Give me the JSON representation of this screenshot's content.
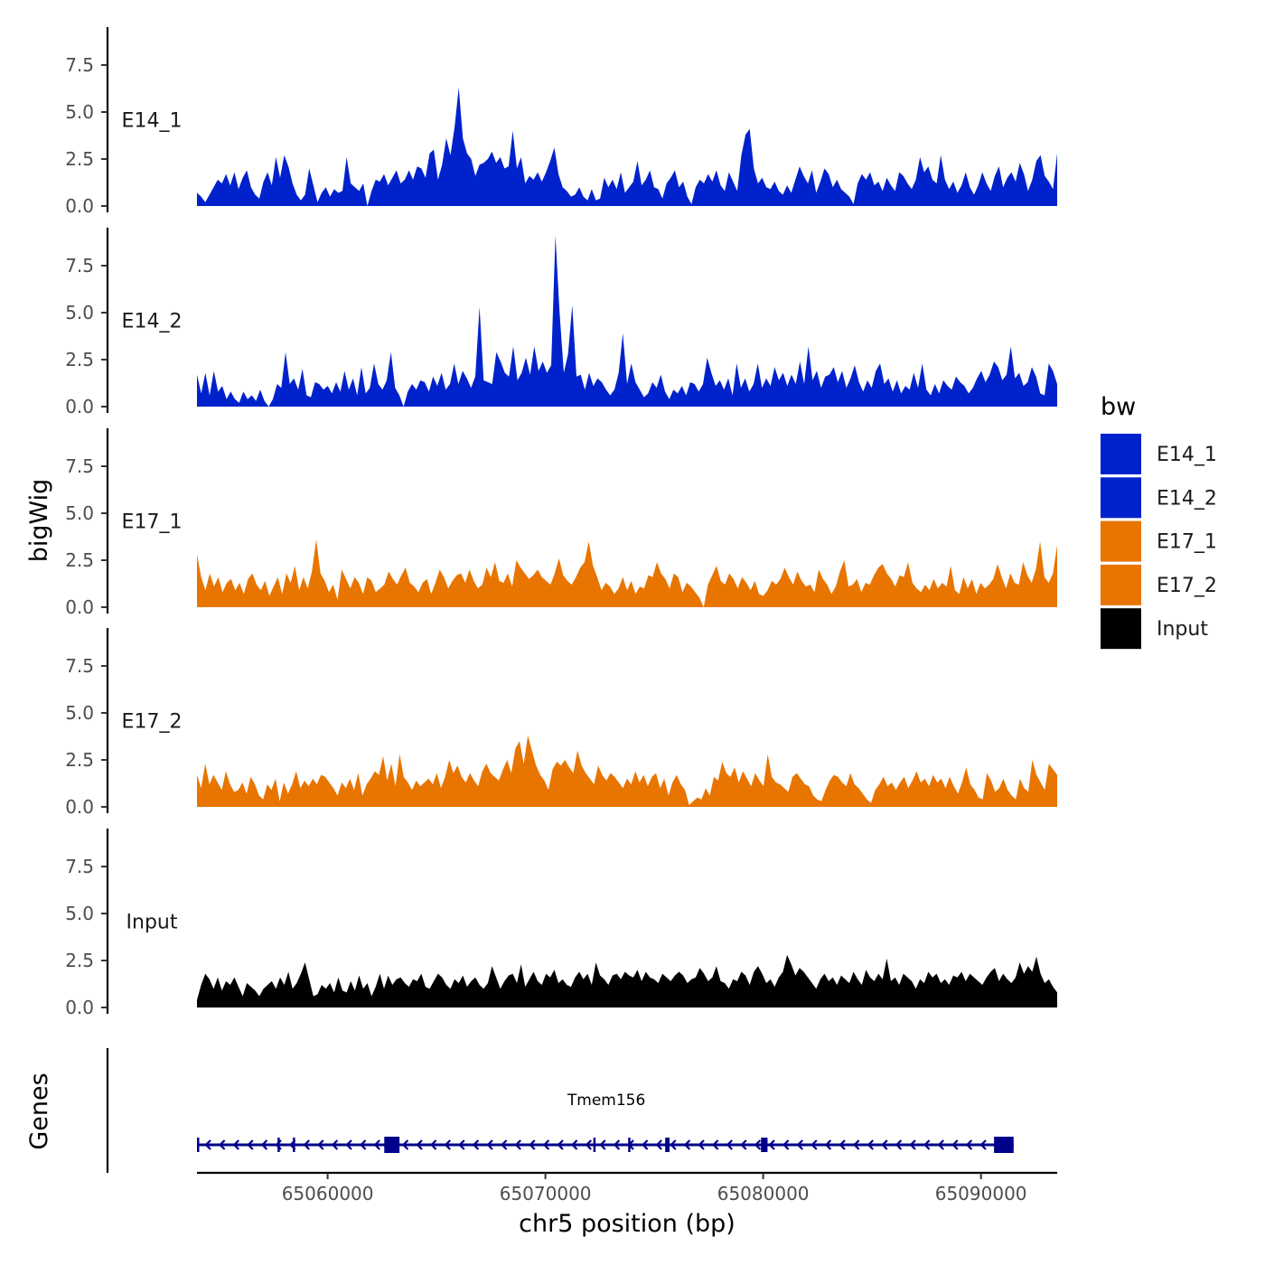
{
  "chart_data": {
    "type": "area",
    "title": "",
    "ylabel": "bigWig",
    "xlabel": "chr5 position (bp)",
    "ylim": [
      0,
      9.6
    ],
    "yticks": [
      0.0,
      2.5,
      5.0,
      7.5
    ],
    "ytick_labels": [
      "0.0",
      "2.5",
      "5.0",
      "7.5"
    ],
    "xlim": [
      65054000,
      65093500
    ],
    "xticks": [
      65060000,
      65070000,
      65080000,
      65090000
    ],
    "xtick_labels": [
      "65060000",
      "65070000",
      "65080000",
      "65090000"
    ],
    "series_start": 65054000,
    "series_end": 65093500,
    "legend": {
      "title": "bw",
      "placement": "right",
      "entries": [
        {
          "label": "E14_1",
          "color": "#0022CC"
        },
        {
          "label": "E14_2",
          "color": "#0022CC"
        },
        {
          "label": "E17_1",
          "color": "#E87500"
        },
        {
          "label": "E17_2",
          "color": "#E87500"
        },
        {
          "label": "Input",
          "color": "#000000"
        }
      ]
    },
    "series": [
      {
        "name": "E14_1",
        "color": "#0022CC",
        "values": [
          0.7,
          0.5,
          0.2,
          0.6,
          1.0,
          1.4,
          1.2,
          1.7,
          1.1,
          1.8,
          0.9,
          1.5,
          1.9,
          1.0,
          0.6,
          0.4,
          1.3,
          1.8,
          1.1,
          2.6,
          1.5,
          2.7,
          2.1,
          1.2,
          0.6,
          0.3,
          0.6,
          2.0,
          1.1,
          0.2,
          0.7,
          1.0,
          0.5,
          0.9,
          0.7,
          0.8,
          2.6,
          1.2,
          1.0,
          0.8,
          1.2,
          0.0,
          0.8,
          1.4,
          1.3,
          1.7,
          1.1,
          1.5,
          1.9,
          1.2,
          1.4,
          1.9,
          1.4,
          2.1,
          2.0,
          1.5,
          2.8,
          3.0,
          1.4,
          2.2,
          3.6,
          2.7,
          4.2,
          6.3,
          3.6,
          2.8,
          2.5,
          1.6,
          2.2,
          2.3,
          2.5,
          2.9,
          2.3,
          2.6,
          2.0,
          2.1,
          4.0,
          2.0,
          2.6,
          1.2,
          1.6,
          1.4,
          1.8,
          1.3,
          1.8,
          2.4,
          3.1,
          1.7,
          1.0,
          0.8,
          0.5,
          0.6,
          1.0,
          0.5,
          0.3,
          0.9,
          0.3,
          0.4,
          1.5,
          1.0,
          1.4,
          0.9,
          1.8,
          0.7,
          1.0,
          1.3,
          2.4,
          1.1,
          1.4,
          1.9,
          1.0,
          0.9,
          0.4,
          1.2,
          1.5,
          1.9,
          1.0,
          1.3,
          0.5,
          0.1,
          1.0,
          1.4,
          1.2,
          1.7,
          1.3,
          1.9,
          1.1,
          0.8,
          1.8,
          1.3,
          0.8,
          2.7,
          3.8,
          4.1,
          2.0,
          1.2,
          1.5,
          1.0,
          0.9,
          1.3,
          0.8,
          0.6,
          1.1,
          0.7,
          1.4,
          2.1,
          1.6,
          1.2,
          1.9,
          0.7,
          1.3,
          2.0,
          1.7,
          1.0,
          1.4,
          0.9,
          0.7,
          0.5,
          0.1,
          1.2,
          1.7,
          1.4,
          1.8,
          1.1,
          1.3,
          0.8,
          1.5,
          1.1,
          0.8,
          1.8,
          1.6,
          1.2,
          0.9,
          1.4,
          2.6,
          1.8,
          2.1,
          1.4,
          1.2,
          2.7,
          1.4,
          0.9,
          1.3,
          0.7,
          1.1,
          1.8,
          1.0,
          0.6,
          1.1,
          1.8,
          1.2,
          0.8,
          1.6,
          2.1,
          1.0,
          1.5,
          1.8,
          1.3,
          2.3,
          1.7,
          0.8,
          1.4,
          2.4,
          2.7,
          1.6,
          1.3,
          0.9,
          2.8
        ]
      },
      {
        "name": "E14_2",
        "color": "#0022CC",
        "values": [
          1.7,
          0.7,
          1.8,
          0.6,
          1.9,
          0.8,
          1.1,
          0.4,
          0.8,
          0.4,
          0.2,
          0.8,
          0.4,
          0.6,
          0.3,
          0.9,
          0.3,
          0.0,
          0.4,
          1.2,
          1.0,
          2.9,
          1.2,
          1.5,
          0.9,
          2.0,
          0.6,
          0.5,
          1.3,
          1.2,
          0.9,
          1.1,
          0.7,
          1.3,
          0.8,
          1.9,
          0.9,
          1.5,
          0.6,
          2.1,
          0.7,
          1.0,
          2.3,
          1.2,
          0.9,
          1.4,
          2.9,
          1.0,
          0.6,
          0.0,
          0.8,
          1.2,
          0.9,
          1.4,
          1.3,
          0.8,
          1.6,
          1.1,
          1.8,
          0.9,
          1.2,
          2.3,
          1.2,
          1.9,
          1.5,
          1.0,
          1.6,
          5.3,
          1.4,
          1.3,
          1.2,
          2.9,
          2.4,
          1.8,
          1.6,
          3.2,
          1.4,
          1.8,
          2.6,
          1.7,
          3.2,
          1.9,
          2.4,
          1.8,
          2.2,
          9.1,
          5.0,
          1.8,
          2.8,
          5.4,
          1.6,
          1.7,
          0.9,
          1.8,
          1.1,
          1.5,
          1.3,
          0.9,
          0.6,
          0.9,
          1.8,
          3.9,
          1.2,
          2.3,
          1.3,
          0.9,
          0.5,
          0.7,
          1.3,
          1.0,
          1.7,
          0.8,
          0.4,
          0.9,
          0.7,
          1.1,
          0.6,
          1.3,
          1.2,
          0.8,
          1.2,
          2.6,
          1.8,
          1.1,
          1.4,
          0.9,
          1.5,
          0.6,
          2.3,
          1.0,
          1.5,
          0.8,
          1.2,
          2.3,
          1.0,
          1.5,
          1.1,
          2.1,
          1.4,
          1.8,
          1.1,
          1.7,
          1.2,
          2.4,
          1.2,
          3.2,
          1.4,
          1.9,
          1.0,
          1.6,
          1.7,
          2.1,
          1.3,
          1.9,
          1.0,
          1.5,
          2.2,
          1.3,
          0.8,
          1.4,
          1.0,
          1.9,
          2.3,
          1.2,
          1.5,
          0.8,
          1.4,
          0.7,
          1.1,
          0.9,
          1.8,
          1.0,
          2.3,
          0.9,
          0.6,
          1.2,
          0.7,
          1.4,
          1.1,
          0.9,
          1.6,
          1.3,
          1.1,
          0.7,
          1.0,
          1.5,
          1.9,
          1.3,
          1.7,
          2.4,
          2.1,
          1.4,
          1.7,
          3.2,
          1.5,
          1.8,
          1.1,
          1.3,
          2.1,
          1.6,
          0.7,
          0.6,
          2.3,
          1.9,
          1.2
        ]
      },
      {
        "name": "E17_1",
        "color": "#E87500",
        "values": [
          2.8,
          1.6,
          0.9,
          1.8,
          1.1,
          1.6,
          0.8,
          1.3,
          1.5,
          0.9,
          1.3,
          0.7,
          1.5,
          1.8,
          1.2,
          0.9,
          1.4,
          0.6,
          1.1,
          1.6,
          0.7,
          1.8,
          1.3,
          2.2,
          0.9,
          1.6,
          1.0,
          1.9,
          3.6,
          1.8,
          1.4,
          0.8,
          1.2,
          0.4,
          2.0,
          1.5,
          1.0,
          1.6,
          1.3,
          0.7,
          1.6,
          1.4,
          0.8,
          1.0,
          1.2,
          1.9,
          1.5,
          1.2,
          1.7,
          2.1,
          1.3,
          1.1,
          0.8,
          1.3,
          1.5,
          0.7,
          1.3,
          2.0,
          1.6,
          1.0,
          1.4,
          1.7,
          1.8,
          1.3,
          2.0,
          1.4,
          1.0,
          1.2,
          2.1,
          1.6,
          2.4,
          1.4,
          1.3,
          1.8,
          1.1,
          2.5,
          2.1,
          1.8,
          1.5,
          1.7,
          2.0,
          1.6,
          1.4,
          1.2,
          1.8,
          2.6,
          1.7,
          1.4,
          1.2,
          1.6,
          2.1,
          2.4,
          3.5,
          2.2,
          1.6,
          0.9,
          1.3,
          1.1,
          0.7,
          1.0,
          1.6,
          0.9,
          1.4,
          0.7,
          1.1,
          1.0,
          1.7,
          1.6,
          2.4,
          1.8,
          1.5,
          1.0,
          1.8,
          1.6,
          0.8,
          1.3,
          1.1,
          0.8,
          0.5,
          0.0,
          1.2,
          1.7,
          2.2,
          1.4,
          1.2,
          1.8,
          1.5,
          1.0,
          1.6,
          1.3,
          0.9,
          1.4,
          0.7,
          0.6,
          0.9,
          1.4,
          1.2,
          1.5,
          2.1,
          1.6,
          1.2,
          1.9,
          1.4,
          1.1,
          1.2,
          0.8,
          2.0,
          1.5,
          1.2,
          0.7,
          1.1,
          1.9,
          2.5,
          1.1,
          1.2,
          1.5,
          0.8,
          1.3,
          1.2,
          1.7,
          2.1,
          2.3,
          1.8,
          1.5,
          1.1,
          1.7,
          1.6,
          2.4,
          1.3,
          1.0,
          0.8,
          1.2,
          0.9,
          1.5,
          1.0,
          1.3,
          1.1,
          2.2,
          0.9,
          0.7,
          1.6,
          1.0,
          1.5,
          0.7,
          1.3,
          1.0,
          1.2,
          1.5,
          2.3,
          1.6,
          1.0,
          1.8,
          1.3,
          1.2,
          2.4,
          1.7,
          1.3,
          2.0,
          3.5,
          1.6,
          1.3,
          1.8,
          3.3
        ]
      },
      {
        "name": "E17_2",
        "color": "#E87500",
        "values": [
          1.7,
          1.0,
          2.3,
          1.2,
          1.7,
          1.3,
          0.9,
          1.9,
          1.2,
          0.8,
          0.9,
          1.3,
          0.7,
          1.6,
          1.2,
          0.6,
          0.4,
          1.2,
          0.9,
          1.5,
          0.3,
          1.3,
          0.7,
          1.2,
          1.9,
          1.0,
          1.4,
          1.1,
          1.5,
          1.2,
          1.7,
          1.6,
          1.3,
          1.0,
          0.6,
          1.3,
          1.0,
          1.5,
          0.9,
          1.8,
          0.6,
          1.2,
          1.5,
          1.9,
          1.7,
          2.7,
          1.4,
          2.3,
          1.1,
          2.8,
          1.6,
          1.3,
          0.9,
          1.4,
          1.1,
          1.3,
          1.5,
          1.2,
          1.8,
          1.0,
          1.6,
          2.5,
          1.8,
          2.2,
          1.6,
          1.3,
          1.8,
          1.4,
          1.1,
          1.9,
          2.3,
          1.8,
          1.6,
          1.4,
          2.0,
          2.5,
          1.8,
          3.1,
          3.5,
          2.3,
          3.8,
          3.0,
          2.2,
          1.7,
          1.4,
          0.9,
          2.0,
          2.4,
          2.2,
          2.5,
          2.1,
          1.8,
          3.0,
          2.2,
          1.8,
          1.5,
          1.2,
          2.2,
          1.7,
          1.4,
          1.8,
          1.6,
          1.3,
          1.0,
          1.5,
          1.2,
          1.9,
          1.3,
          1.7,
          1.1,
          1.6,
          1.8,
          1.0,
          1.5,
          0.6,
          1.3,
          1.7,
          1.2,
          0.9,
          0.1,
          0.3,
          0.5,
          0.4,
          1.0,
          0.6,
          1.6,
          1.4,
          2.4,
          1.8,
          1.6,
          2.1,
          1.3,
          1.9,
          1.5,
          1.1,
          1.8,
          1.4,
          1.1,
          2.8,
          1.6,
          1.3,
          1.2,
          1.0,
          0.8,
          1.6,
          1.8,
          1.5,
          1.2,
          1.1,
          0.6,
          0.4,
          0.3,
          0.9,
          1.4,
          1.7,
          1.6,
          1.3,
          1.1,
          1.8,
          1.2,
          1.0,
          0.7,
          0.4,
          0.2,
          0.9,
          1.2,
          1.6,
          1.1,
          1.3,
          0.9,
          1.3,
          1.6,
          1.0,
          1.4,
          1.9,
          1.3,
          1.5,
          1.1,
          1.7,
          1.3,
          1.5,
          1.0,
          1.6,
          1.1,
          0.7,
          1.3,
          2.1,
          1.2,
          0.9,
          0.5,
          0.4,
          1.8,
          1.4,
          0.8,
          1.0,
          1.5,
          0.9,
          0.6,
          0.4,
          1.5,
          1.0,
          0.8,
          2.5,
          1.7,
          1.3,
          0.9,
          2.3,
          2.0,
          1.7
        ]
      },
      {
        "name": "Input",
        "color": "#000000",
        "values": [
          0.4,
          1.2,
          1.8,
          1.5,
          1.0,
          1.6,
          0.9,
          1.4,
          1.2,
          1.6,
          1.1,
          0.6,
          1.3,
          1.1,
          0.9,
          0.6,
          1.0,
          1.2,
          1.4,
          1.0,
          1.6,
          1.2,
          1.9,
          1.0,
          1.3,
          1.8,
          2.4,
          1.5,
          0.6,
          0.7,
          1.2,
          1.0,
          1.3,
          0.8,
          1.6,
          0.9,
          0.8,
          1.4,
          0.9,
          1.7,
          1.0,
          1.3,
          0.6,
          1.1,
          1.8,
          1.0,
          1.7,
          1.2,
          1.5,
          1.6,
          1.3,
          1.1,
          1.5,
          1.4,
          1.8,
          1.1,
          1.0,
          1.4,
          1.8,
          1.6,
          1.2,
          1.0,
          1.5,
          1.3,
          1.7,
          1.1,
          1.4,
          1.6,
          1.2,
          1.0,
          1.3,
          2.2,
          1.6,
          1.0,
          1.4,
          1.7,
          1.8,
          1.3,
          2.3,
          1.1,
          1.5,
          1.9,
          1.4,
          1.2,
          1.8,
          1.6,
          2.0,
          1.3,
          1.5,
          1.2,
          1.1,
          1.6,
          1.9,
          1.5,
          1.8,
          1.2,
          2.4,
          1.7,
          1.5,
          1.2,
          1.7,
          1.8,
          1.5,
          1.9,
          1.7,
          1.6,
          2.0,
          1.4,
          1.9,
          1.6,
          1.5,
          1.3,
          1.8,
          1.6,
          1.4,
          1.7,
          1.9,
          1.7,
          1.3,
          1.5,
          1.6,
          2.1,
          1.8,
          1.4,
          1.6,
          2.2,
          1.4,
          1.3,
          1.0,
          1.5,
          1.4,
          1.9,
          1.7,
          1.2,
          1.9,
          2.2,
          1.8,
          1.3,
          1.5,
          1.1,
          1.6,
          1.9,
          2.8,
          2.3,
          1.7,
          2.1,
          1.9,
          1.6,
          1.3,
          1.0,
          1.5,
          1.8,
          1.4,
          1.6,
          1.2,
          1.7,
          1.5,
          1.3,
          1.9,
          1.5,
          1.2,
          2.0,
          1.6,
          1.4,
          1.8,
          1.5,
          2.6,
          1.4,
          1.6,
          1.2,
          1.8,
          1.6,
          1.4,
          1.0,
          1.5,
          1.3,
          1.9,
          1.6,
          1.8,
          1.3,
          1.5,
          1.2,
          1.7,
          1.6,
          1.9,
          1.4,
          1.8,
          1.6,
          1.4,
          1.2,
          1.6,
          1.9,
          2.1,
          1.4,
          1.8,
          1.5,
          1.3,
          1.6,
          2.4,
          1.8,
          2.2,
          1.9,
          2.7,
          1.8,
          1.3,
          1.5,
          1.1,
          0.8
        ]
      }
    ],
    "gene_track": {
      "ylabel": "Genes",
      "gene_name": "Tmem156",
      "strand": "-",
      "color": "#00008B",
      "start": 65054000,
      "end": 65091500,
      "exons": [
        {
          "start": 65054000,
          "end": 65054100
        },
        {
          "start": 65057700,
          "end": 65057800
        },
        {
          "start": 65058400,
          "end": 65058500
        },
        {
          "start": 65062600,
          "end": 65063300
        },
        {
          "start": 65072200,
          "end": 65072300
        },
        {
          "start": 65073800,
          "end": 65073900
        },
        {
          "start": 65075500,
          "end": 65075700
        },
        {
          "start": 65079900,
          "end": 65080200
        },
        {
          "start": 65090600,
          "end": 65091500
        }
      ]
    }
  }
}
